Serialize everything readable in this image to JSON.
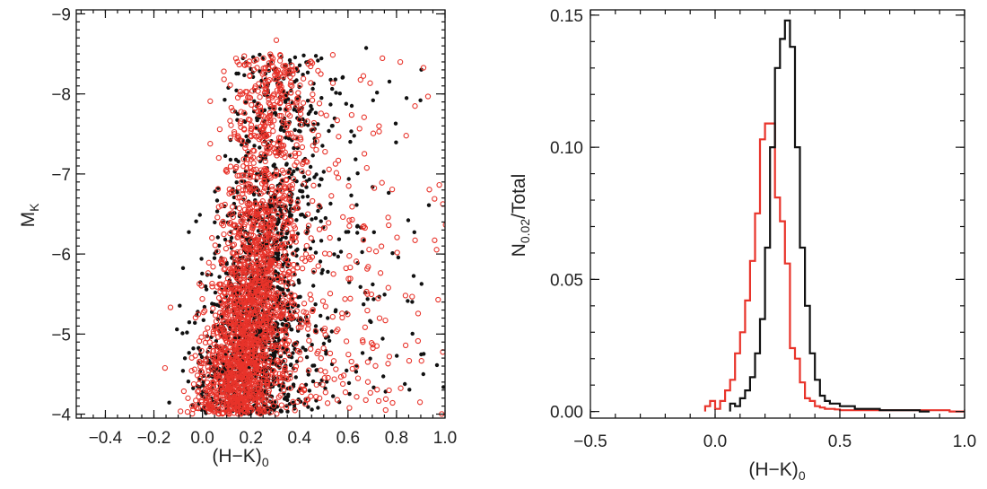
{
  "chart_data": [
    {
      "type": "scatter",
      "xlabel": "(H−K)",
      "xlabel_sub": "0",
      "ylabel": "M",
      "ylabel_sub": "K",
      "xlim": [
        -0.52,
        1.0
      ],
      "ylim": [
        -3.95,
        -9.05
      ],
      "y_inverted": true,
      "xticks": [
        -0.4,
        -0.2,
        0.0,
        0.2,
        0.4,
        0.6,
        0.8,
        1.0
      ],
      "xtick_labels": [
        "−0.4",
        "−0.2",
        "0.0",
        "0.2",
        "0.4",
        "0.6",
        "0.8",
        "1.0"
      ],
      "yticks": [
        -4,
        -5,
        -6,
        -7,
        -8,
        -9
      ],
      "ytick_labels": [
        "−4",
        "−5",
        "−6",
        "−7",
        "−8",
        "−9"
      ],
      "series": [
        {
          "color": "#111111",
          "marker": "filled-dot",
          "count": 1600,
          "ridge": {
            "mk": [
              -4.0,
              -5.0,
              -6.0,
              -7.0,
              -8.0,
              -8.6
            ],
            "hk": [
              0.15,
              0.2,
              0.24,
              0.28,
              0.31,
              0.32
            ]
          },
          "spread": 0.1,
          "tail_max_hk": 1.0
        },
        {
          "color": "#e8332a",
          "marker": "open-circle",
          "count": 2200,
          "ridge": {
            "mk": [
              -4.0,
              -5.0,
              -6.0,
              -7.0,
              -8.0,
              -8.6
            ],
            "hk": [
              0.13,
              0.18,
              0.22,
              0.25,
              0.28,
              0.3
            ]
          },
          "spread": 0.085,
          "tail_max_hk": 1.0
        }
      ]
    },
    {
      "type": "histogram",
      "xlabel": "(H−K)",
      "xlabel_sub": "0",
      "ylabel": "N",
      "ylabel_sub": "0.02",
      "ylabel_suffix": "/Total",
      "xlim": [
        -0.5,
        1.0
      ],
      "ylim": [
        -0.0025,
        0.152
      ],
      "bin_width": 0.02,
      "xticks": [
        -0.5,
        0.0,
        0.5,
        1.0
      ],
      "xtick_labels": [
        "−0.5",
        "0.0",
        "0.5",
        "1.0"
      ],
      "yticks": [
        0.0,
        0.05,
        0.1,
        0.15
      ],
      "ytick_labels": [
        "0.00",
        "0.05",
        "0.10",
        "0.15"
      ],
      "series": [
        {
          "color": "#111111",
          "bin_start": 0.06,
          "values": [
            0.003,
            0.002,
            0.005,
            0.008,
            0.013,
            0.022,
            0.035,
            0.062,
            0.1,
            0.13,
            0.141,
            0.148,
            0.138,
            0.1,
            0.062,
            0.04,
            0.022,
            0.012,
            0.006,
            0.004,
            0.003,
            0.003,
            0.002,
            0.002,
            0.002,
            0.001,
            0.001,
            0.001,
            0.001,
            0.001,
            0.0005,
            0.0005,
            0.0005,
            0.0005,
            0.0005,
            0.0005,
            0.0005,
            0.0005,
            0.0,
            0.0
          ]
        },
        {
          "color": "#e8332a",
          "bin_start": -0.04,
          "values": [
            0.002,
            0.004,
            0.001,
            0.004,
            0.008,
            0.012,
            0.022,
            0.03,
            0.042,
            0.057,
            0.075,
            0.103,
            0.109,
            0.109,
            0.081,
            0.072,
            0.056,
            0.024,
            0.02,
            0.011,
            0.005,
            0.004,
            0.002,
            0.0015,
            0.001,
            0.001,
            0.0008,
            0.0005,
            0.0005,
            0.0005,
            0.0005,
            0.0005,
            0.0005,
            0.0005,
            0.0005,
            0.0005,
            0.0005,
            0.0005,
            0.0005,
            0.0005,
            0.0005,
            0.0005,
            0.0005,
            0.0005,
            0.0005,
            0.0005,
            0.0005,
            0.0005,
            0.0005,
            0.0,
            0.0,
            0.0
          ]
        }
      ]
    }
  ]
}
